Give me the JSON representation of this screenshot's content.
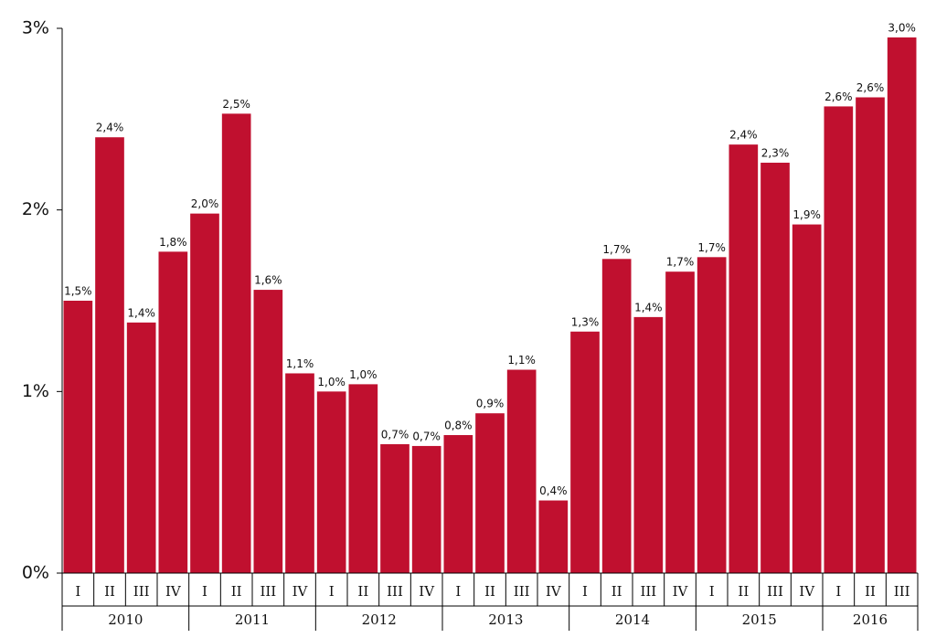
{
  "chart_data": {
    "type": "bar",
    "color": "#c0102f",
    "groups": [
      {
        "label": "2010",
        "quarters": [
          "I",
          "II",
          "III",
          "IV"
        ]
      },
      {
        "label": "2011",
        "quarters": [
          "I",
          "II",
          "III",
          "IV"
        ]
      },
      {
        "label": "2012",
        "quarters": [
          "I",
          "II",
          "III",
          "IV"
        ]
      },
      {
        "label": "2013",
        "quarters": [
          "I",
          "II",
          "III",
          "IV"
        ]
      },
      {
        "label": "2014",
        "quarters": [
          "I",
          "II",
          "III",
          "IV"
        ]
      },
      {
        "label": "2015",
        "quarters": [
          "I",
          "II",
          "III",
          "IV"
        ]
      },
      {
        "label": "2016",
        "quarters": [
          "I",
          "II",
          "III"
        ]
      }
    ],
    "values": [
      1.5,
      2.4,
      1.38,
      1.77,
      1.98,
      2.53,
      1.56,
      1.1,
      1.0,
      1.04,
      0.71,
      0.7,
      0.76,
      0.88,
      1.12,
      0.4,
      1.33,
      1.73,
      1.41,
      1.66,
      1.74,
      2.36,
      2.26,
      1.92,
      2.57,
      2.62,
      2.95
    ],
    "value_labels": [
      "1,5%",
      "2,4%",
      "1,4%",
      "1,8%",
      "2,0%",
      "2,5%",
      "1,6%",
      "1,1%",
      "1,0%",
      "1,0%",
      "0,7%",
      "0,7%",
      "0,8%",
      "0,9%",
      "1,1%",
      "0,4%",
      "1,3%",
      "1,7%",
      "1,4%",
      "1,7%",
      "1,7%",
      "2,4%",
      "2,3%",
      "1,9%",
      "2,6%",
      "2,6%",
      "3,0%"
    ],
    "ylim": [
      0,
      3
    ],
    "yticks": [
      {
        "value": 0,
        "label": "0%"
      },
      {
        "value": 1,
        "label": "1%"
      },
      {
        "value": 2,
        "label": "2%"
      },
      {
        "value": 3,
        "label": "3%"
      }
    ],
    "grid": false
  }
}
